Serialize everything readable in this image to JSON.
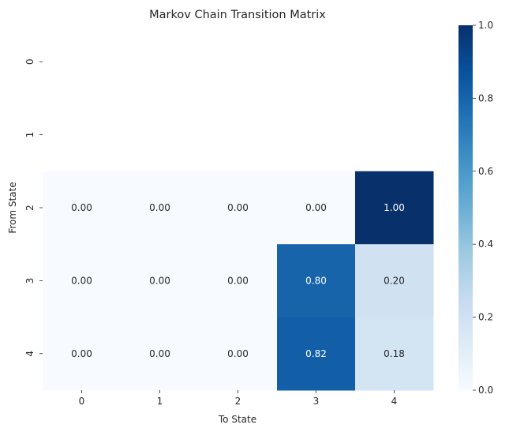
{
  "chart_data": {
    "type": "heatmap",
    "title": "Markov Chain Transition Matrix",
    "xlabel": "To State",
    "ylabel": "From State",
    "x_categories": [
      "0",
      "1",
      "2",
      "3",
      "4"
    ],
    "y_categories": [
      "0",
      "1",
      "2",
      "3",
      "4"
    ],
    "values": [
      [
        null,
        null,
        null,
        null,
        null
      ],
      [
        null,
        null,
        null,
        null,
        null
      ],
      [
        0.0,
        0.0,
        0.0,
        0.0,
        1.0
      ],
      [
        0.0,
        0.0,
        0.0,
        0.8,
        0.2
      ],
      [
        0.0,
        0.0,
        0.0,
        0.82,
        0.18
      ]
    ],
    "cell_labels": [
      [
        "",
        "",
        "",
        "",
        ""
      ],
      [
        "",
        "",
        "",
        "",
        ""
      ],
      [
        "0.00",
        "0.00",
        "0.00",
        "0.00",
        "1.00"
      ],
      [
        "0.00",
        "0.00",
        "0.00",
        "0.80",
        "0.20"
      ],
      [
        "0.00",
        "0.00",
        "0.00",
        "0.82",
        "0.18"
      ]
    ],
    "colormap": "Blues",
    "vmin": 0.0,
    "vmax": 1.0,
    "colorbar_ticks": [
      "0.0",
      "0.2",
      "0.4",
      "0.6",
      "0.8",
      "1.0"
    ],
    "colorbar_tick_values": [
      0.0,
      0.2,
      0.4,
      0.6,
      0.8,
      1.0
    ]
  }
}
